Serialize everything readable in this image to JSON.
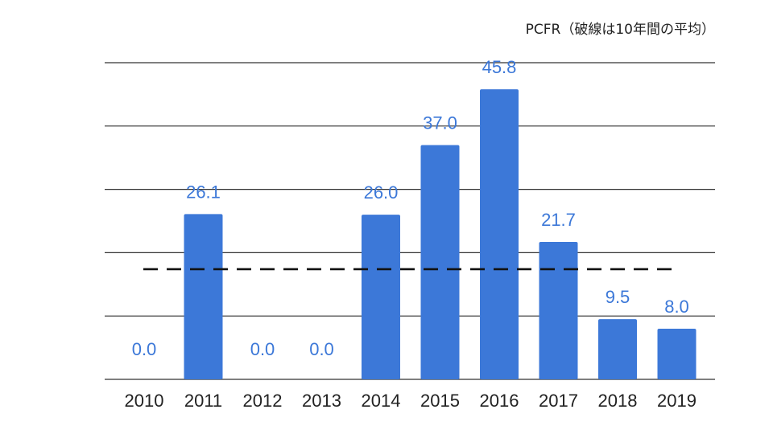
{
  "chart_data": {
    "type": "bar",
    "title": "PCFR（破線は10年間の平均）",
    "categories": [
      "2010",
      "2011",
      "2012",
      "2013",
      "2014",
      "2015",
      "2016",
      "2017",
      "2018",
      "2019"
    ],
    "values": [
      0.0,
      26.1,
      0.0,
      0.0,
      26.0,
      37.0,
      45.8,
      21.7,
      9.5,
      8.0
    ],
    "data_labels": [
      "0.0",
      "26.1",
      "0.0",
      "0.0",
      "26.0",
      "37.0",
      "45.8",
      "21.7",
      "9.5",
      "8.0"
    ],
    "average_line": {
      "value": 17.4,
      "style": "dashed"
    },
    "ylim": [
      0,
      50
    ],
    "y_gridlines": [
      0,
      10,
      20,
      30,
      40,
      50
    ],
    "y_tick_labels_shown": false,
    "grid": true,
    "legend": "none",
    "xlabel": "",
    "ylabel": "",
    "colors": {
      "bar": "#3c78d8",
      "data_label": "#3c78d8",
      "gridline": "#333333",
      "average_line": "#111111"
    }
  }
}
